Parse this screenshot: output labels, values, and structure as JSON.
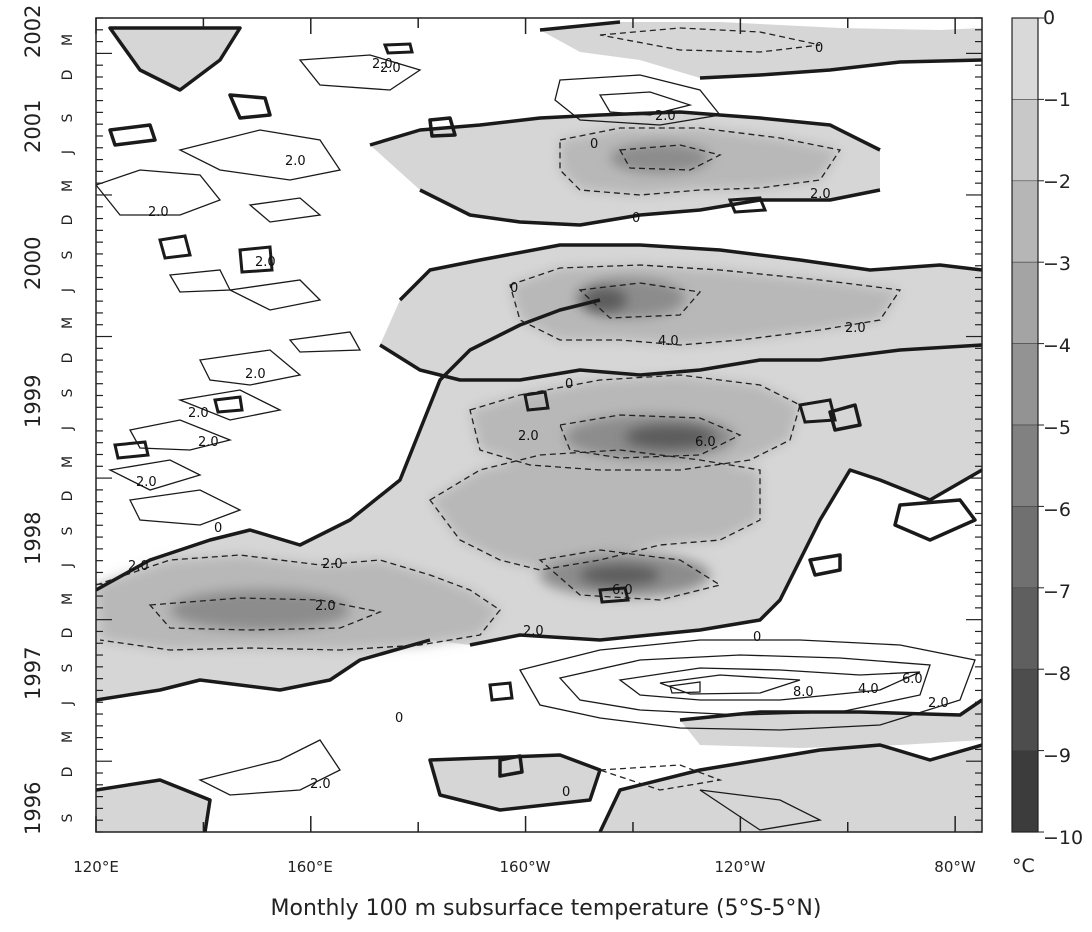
{
  "caption": "Monthly 100 m subsurface temperature (5°S-5°N)",
  "chart_data": {
    "type": "heatmap",
    "title": "Monthly 100 m subsurface temperature (5°S-5°N)",
    "x_axis": {
      "ticks": [
        "120°E",
        "160°E",
        "160°W",
        "120°W",
        "80°W"
      ],
      "tick_lon_east": [
        120,
        160,
        200,
        240,
        280
      ],
      "range_lon_east": [
        120,
        285
      ]
    },
    "y_axis": {
      "year_labels": [
        "1996",
        "1997",
        "1998",
        "1999",
        "2000",
        "2001",
        "2002"
      ],
      "month_labels": [
        "S",
        "D",
        "M",
        "J",
        "S",
        "D",
        "M",
        "J",
        "S",
        "D",
        "M",
        "J",
        "S",
        "D",
        "M",
        "J",
        "S",
        "D",
        "M",
        "J",
        "S",
        "D",
        "M"
      ],
      "range": [
        "1996-07",
        "2002-04"
      ]
    },
    "colorbar": {
      "tick_labels": [
        "0",
        "−1",
        "−2",
        "−3",
        "−4",
        "−5",
        "−6",
        "−7",
        "−8",
        "−9",
        "−10"
      ],
      "levels": [
        0,
        -1,
        -2,
        -3,
        -4,
        -5,
        -6,
        -7,
        -8,
        -9,
        -10
      ],
      "unit": "°C",
      "colors": [
        "#d9d9d9",
        "#c8c8c8",
        "#b6b6b6",
        "#a4a4a4",
        "#939393",
        "#818181",
        "#707070",
        "#5f5f5f",
        "#4d4d4d",
        "#3c3c3c"
      ]
    },
    "contour_labels": [
      "0",
      "0",
      "0",
      "0",
      "0",
      "0",
      "0",
      "0",
      "0",
      "2.0",
      "2.0",
      "2.0",
      "2.0",
      "2.0",
      "2.0",
      "2.0",
      "2.0",
      "2.0",
      "2.0",
      "2.0",
      "2.0",
      "2.0",
      "2.0",
      "2.0",
      "2.0",
      "2.0",
      "4.0",
      "4.0",
      "6.0",
      "6.0",
      "6.0",
      "8.0",
      "2.0",
      "2.0"
    ],
    "anomaly_blobs": [
      {
        "lon": 200,
        "date": "1998-01",
        "value": -2.5
      },
      {
        "lon": 225,
        "date": "1998-05",
        "value": -7.5
      },
      {
        "lon": 230,
        "date": "1999-03",
        "value": -8
      },
      {
        "lon": 223,
        "date": "2000-02",
        "value": -8
      },
      {
        "lon": 237,
        "date": "2001-03",
        "value": -5
      },
      {
        "lon": 250,
        "date": "1997-10",
        "value": 9
      },
      {
        "lon": 160,
        "date": "1997-11",
        "value": -3.5
      }
    ]
  }
}
